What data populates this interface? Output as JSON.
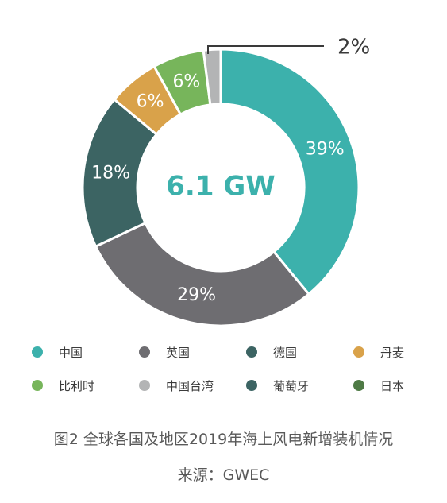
{
  "chart_data": {
    "type": "pie",
    "donut": true,
    "center_label": "6.1 GW",
    "slices": [
      {
        "name": "中国",
        "value": 39,
        "label": "39%",
        "color": "#3cb1ac"
      },
      {
        "name": "英国",
        "value": 29,
        "label": "29%",
        "color": "#6e6d71"
      },
      {
        "name": "德国",
        "value": 18,
        "label": "18%",
        "color": "#3c6463"
      },
      {
        "name": "丹麦",
        "value": 6,
        "label": "6%",
        "color": "#d9a24a"
      },
      {
        "name": "比利时",
        "value": 6,
        "label": "6%",
        "color": "#77b55b"
      },
      {
        "name": "中国台湾",
        "value": 2,
        "label": "2%",
        "color": "#b3b4b5"
      }
    ],
    "legend": [
      {
        "name": "中国",
        "color": "#3cb1ac"
      },
      {
        "name": "英国",
        "color": "#6e6d71"
      },
      {
        "name": "德国",
        "color": "#3c6463"
      },
      {
        "name": "丹麦",
        "color": "#d9a24a"
      },
      {
        "name": "比利时",
        "color": "#77b55b"
      },
      {
        "name": "中国台湾",
        "color": "#b3b4b5"
      },
      {
        "name": "葡萄牙",
        "color": "#3c6463"
      },
      {
        "name": "日本",
        "color": "#4e7a45"
      }
    ],
    "legend_position": "bottom"
  },
  "caption": {
    "title": "图2  全球各国及地区2019年海上风电新增装机情况",
    "source": "来源：GWEC"
  }
}
